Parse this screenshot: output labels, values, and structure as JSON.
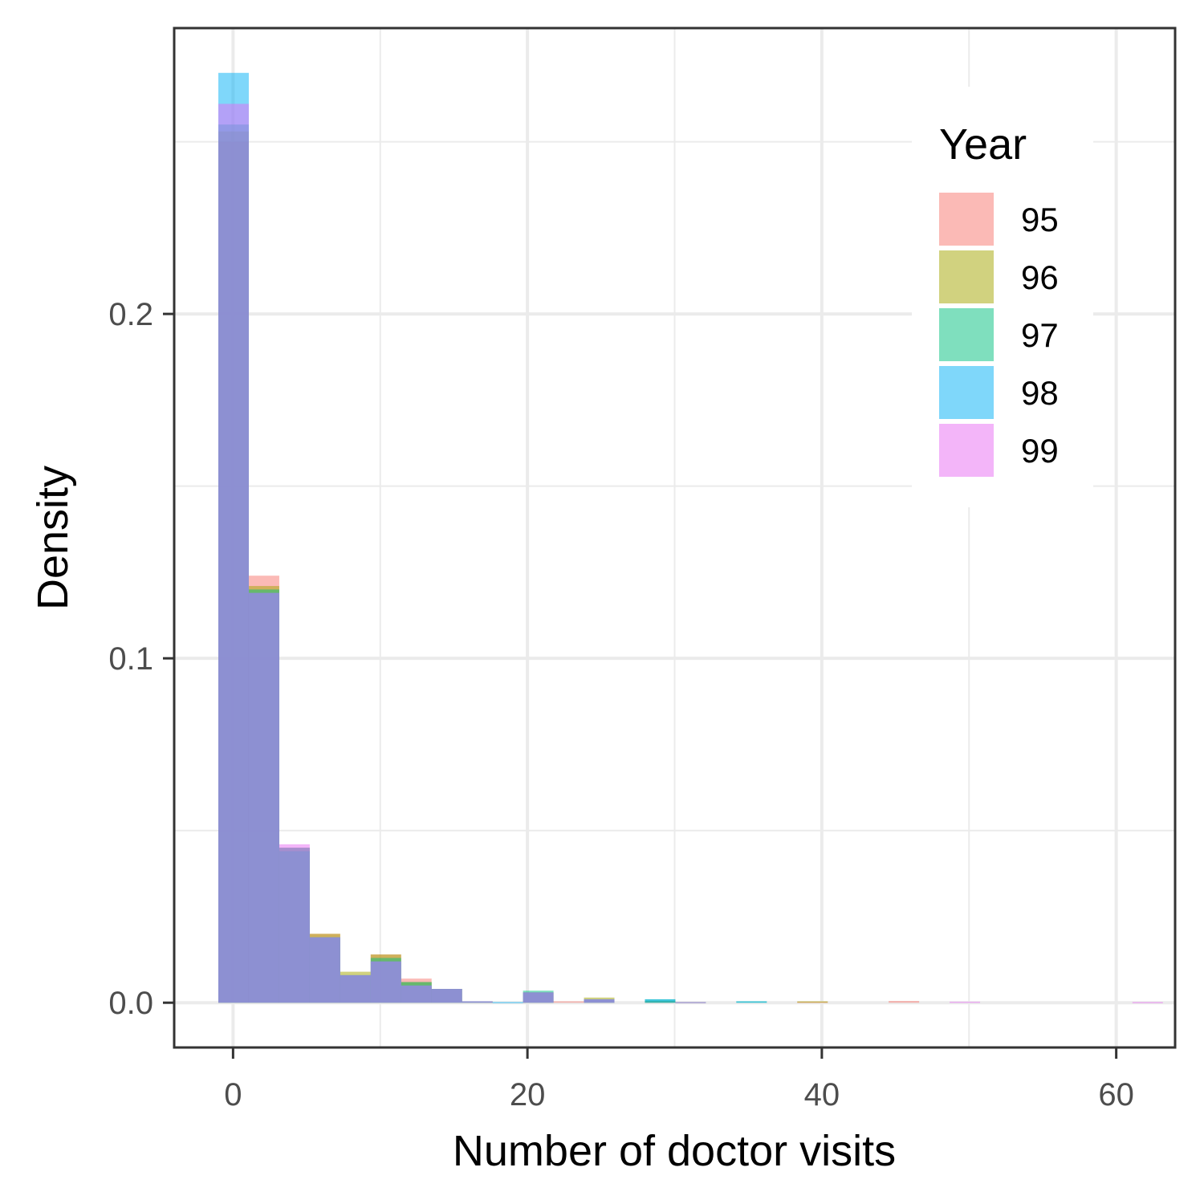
{
  "chart_data": {
    "type": "histogram",
    "title": "",
    "xlabel": "Number of doctor visits",
    "ylabel": "Density",
    "xlim": [
      -4,
      64
    ],
    "ylim": [
      -0.013,
      0.283
    ],
    "x_ticks": [
      0,
      20,
      40,
      60
    ],
    "x_tick_labels": [
      "0",
      "20",
      "40",
      "60"
    ],
    "y_ticks": [
      0.0,
      0.1,
      0.2
    ],
    "y_tick_labels": [
      "0.0",
      "0.1",
      "0.2"
    ],
    "x_minor_ticks": [
      10,
      30,
      50
    ],
    "y_minor_ticks": [
      0.05,
      0.15,
      0.25
    ],
    "grid": true,
    "bin_width": 2.07,
    "bin_start": -1,
    "legend": {
      "title": "Year",
      "placement": "top-right"
    },
    "series": [
      {
        "name": "95",
        "color": "#F8766D",
        "bins": [
          [
            0,
            0.25
          ],
          [
            1,
            0.124
          ],
          [
            2,
            0.045
          ],
          [
            3,
            0.02
          ],
          [
            4,
            0.008
          ],
          [
            5,
            0.014
          ],
          [
            6,
            0.007
          ],
          [
            7,
            0.004
          ],
          [
            8,
            0.0004
          ],
          [
            10,
            0.003
          ],
          [
            11,
            0.0004
          ],
          [
            12,
            0.001
          ],
          [
            14,
            0.0005
          ],
          [
            19,
            0.0003
          ],
          [
            22,
            0.0005
          ]
        ]
      },
      {
        "name": "96",
        "color": "#A3A500",
        "bins": [
          [
            0,
            0.253
          ],
          [
            1,
            0.121
          ],
          [
            2,
            0.045
          ],
          [
            3,
            0.02
          ],
          [
            4,
            0.009
          ],
          [
            5,
            0.014
          ],
          [
            6,
            0.006
          ],
          [
            7,
            0.004
          ],
          [
            8,
            0.0004
          ],
          [
            10,
            0.003
          ],
          [
            12,
            0.0015
          ],
          [
            14,
            0.0005
          ],
          [
            19,
            0.0004
          ]
        ]
      },
      {
        "name": "97",
        "color": "#00BF7D",
        "bins": [
          [
            0,
            0.255
          ],
          [
            1,
            0.12
          ],
          [
            2,
            0.044
          ],
          [
            3,
            0.019
          ],
          [
            4,
            0.008
          ],
          [
            5,
            0.013
          ],
          [
            6,
            0.006
          ],
          [
            7,
            0.004
          ],
          [
            8,
            0.0004
          ],
          [
            10,
            0.0035
          ],
          [
            12,
            0.001
          ],
          [
            14,
            0.001
          ],
          [
            15,
            0.0002
          ],
          [
            17,
            0.0004
          ]
        ]
      },
      {
        "name": "98",
        "color": "#00B0F6",
        "bins": [
          [
            0,
            0.27
          ],
          [
            1,
            0.119
          ],
          [
            2,
            0.045
          ],
          [
            3,
            0.019
          ],
          [
            4,
            0.008
          ],
          [
            5,
            0.012
          ],
          [
            6,
            0.005
          ],
          [
            7,
            0.004
          ],
          [
            8,
            0.0004
          ],
          [
            9,
            0.0002
          ],
          [
            10,
            0.003
          ],
          [
            12,
            0.001
          ],
          [
            14,
            0.001
          ],
          [
            17,
            0.0004
          ]
        ]
      },
      {
        "name": "99",
        "color": "#E76BF3",
        "bins": [
          [
            0,
            0.261
          ],
          [
            1,
            0.119
          ],
          [
            2,
            0.046
          ],
          [
            3,
            0.019
          ],
          [
            4,
            0.008
          ],
          [
            5,
            0.012
          ],
          [
            6,
            0.005
          ],
          [
            7,
            0.004
          ],
          [
            8,
            0.0004
          ],
          [
            10,
            0.003
          ],
          [
            12,
            0.001
          ],
          [
            15,
            0.0002
          ],
          [
            24,
            0.0003
          ],
          [
            30,
            0.0002
          ]
        ]
      }
    ]
  }
}
